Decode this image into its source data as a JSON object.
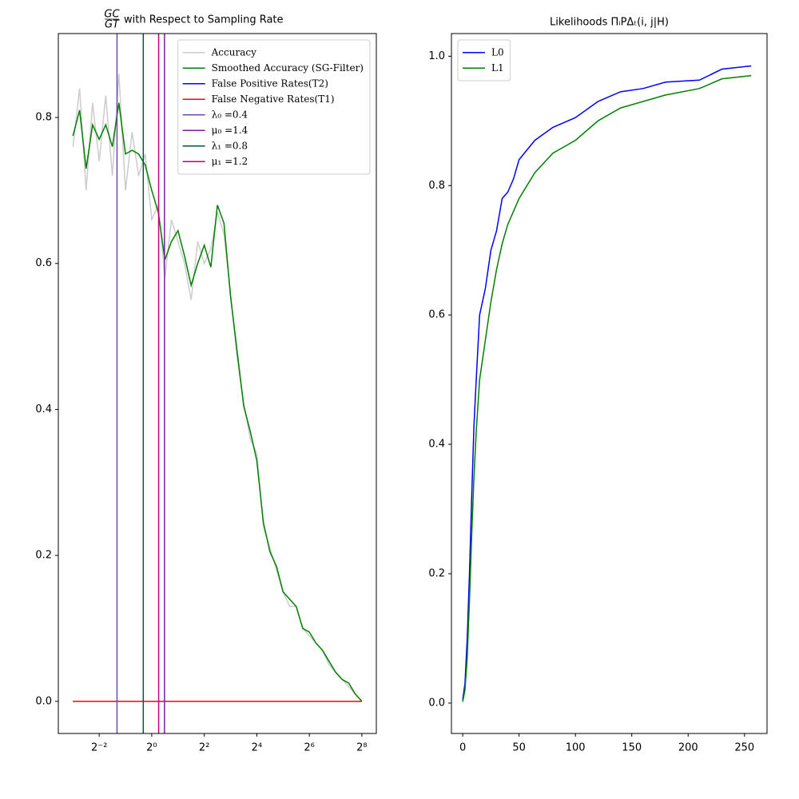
{
  "chart_data": [
    {
      "type": "line",
      "title": {
        "numerator": "GC",
        "denominator": "GT",
        "text": "with Respect to Sampling Rate"
      },
      "log_base": 2,
      "x": [
        0.125,
        0.149,
        0.177,
        0.21,
        0.25,
        0.297,
        0.354,
        0.42,
        0.5,
        0.595,
        0.707,
        0.841,
        1,
        1.189,
        1.414,
        1.682,
        2,
        2.378,
        2.828,
        3.364,
        4,
        4.757,
        5.657,
        6.727,
        8,
        9.514,
        11.314,
        13.454,
        16,
        19.027,
        22.627,
        26.909,
        32,
        38.055,
        45.255,
        53.817,
        64,
        76.109,
        90.51,
        107.635,
        128,
        152.219,
        181.019,
        215.269,
        256
      ],
      "series": [
        {
          "name": "Accuracy",
          "color": "#cccccc",
          "values": [
            0.76,
            0.84,
            0.7,
            0.82,
            0.74,
            0.83,
            0.72,
            0.86,
            0.7,
            0.78,
            0.72,
            0.75,
            0.66,
            0.68,
            0.58,
            0.66,
            0.63,
            0.6,
            0.55,
            0.63,
            0.6,
            0.62,
            0.67,
            0.64,
            0.56,
            0.47,
            0.41,
            0.36,
            0.34,
            0.24,
            0.21,
            0.18,
            0.15,
            0.13,
            0.13,
            0.1,
            0.09,
            0.08,
            0.07,
            0.05,
            0.04,
            0.03,
            0.02,
            0.01,
            0.0
          ]
        },
        {
          "name": "Smoothed Accuracy (SG-Filter)",
          "color": "#008000",
          "values": [
            0.775,
            0.81,
            0.73,
            0.79,
            0.77,
            0.79,
            0.76,
            0.82,
            0.75,
            0.755,
            0.75,
            0.735,
            0.7,
            0.67,
            0.605,
            0.63,
            0.645,
            0.61,
            0.57,
            0.6,
            0.625,
            0.595,
            0.68,
            0.655,
            0.555,
            0.48,
            0.405,
            0.37,
            0.33,
            0.245,
            0.205,
            0.185,
            0.15,
            0.14,
            0.13,
            0.1,
            0.095,
            0.08,
            0.07,
            0.055,
            0.04,
            0.03,
            0.025,
            0.01,
            0.0
          ]
        },
        {
          "name": "False Positive Rates(T2)",
          "color": "#0000ff",
          "x": [
            0.125,
            256
          ],
          "values": [
            0,
            0
          ]
        },
        {
          "name": "False Negative Rates(T1)",
          "color": "#ff0000",
          "x": [
            0.125,
            256
          ],
          "values": [
            0,
            0
          ]
        }
      ],
      "vlines": [
        {
          "name": "λ₀ =0.4",
          "x": 0.4,
          "color": "#6a4cb0"
        },
        {
          "name": "μ₀ =1.4",
          "x": 1.4,
          "color": "#7e1e9c"
        },
        {
          "name": "λ₁ =0.8",
          "x": 0.8,
          "color": "#05533a"
        },
        {
          "name": "μ₁ =1.2",
          "x": 1.2,
          "color": "#c20078"
        }
      ],
      "xlim": [
        0.085,
        375
      ],
      "xticks": [
        {
          "value": 0.25,
          "label": "2⁻²"
        },
        {
          "value": 1,
          "label": "2⁰"
        },
        {
          "value": 4,
          "label": "2²"
        },
        {
          "value": 16,
          "label": "2⁴"
        },
        {
          "value": 64,
          "label": "2⁶"
        },
        {
          "value": 256,
          "label": "2⁸"
        }
      ],
      "ylim": [
        -0.044,
        0.915
      ],
      "yticks": [
        {
          "value": 0,
          "label": "0.0"
        },
        {
          "value": 0.2,
          "label": "0.2"
        },
        {
          "value": 0.4,
          "label": "0.4"
        },
        {
          "value": 0.6,
          "label": "0.6"
        },
        {
          "value": 0.8,
          "label": "0.8"
        }
      ],
      "legend": "upper right"
    },
    {
      "type": "line",
      "title": {
        "text": "Likelihoods ΠᵢPΔₜ(i, j|H)"
      },
      "x": [
        0,
        2,
        4,
        6,
        8,
        10,
        12,
        15,
        20,
        25,
        30,
        35,
        40,
        45,
        50,
        64,
        80,
        100,
        120,
        140,
        160,
        180,
        210,
        230,
        256
      ],
      "series": [
        {
          "name": "L0",
          "color": "#0000ff",
          "values": [
            0.005,
            0.03,
            0.1,
            0.2,
            0.32,
            0.43,
            0.5,
            0.6,
            0.64,
            0.7,
            0.73,
            0.78,
            0.79,
            0.81,
            0.84,
            0.87,
            0.89,
            0.905,
            0.93,
            0.945,
            0.95,
            0.96,
            0.963,
            0.98,
            0.985
          ]
        },
        {
          "name": "L1",
          "color": "#008000",
          "values": [
            0.002,
            0.02,
            0.07,
            0.16,
            0.26,
            0.35,
            0.42,
            0.5,
            0.56,
            0.62,
            0.67,
            0.71,
            0.74,
            0.76,
            0.78,
            0.82,
            0.85,
            0.87,
            0.9,
            0.92,
            0.93,
            0.94,
            0.95,
            0.965,
            0.97
          ]
        }
      ],
      "xlim": [
        -10,
        270
      ],
      "xticks": [
        0,
        50,
        100,
        150,
        200,
        250
      ],
      "ylim": [
        -0.047,
        1.035
      ],
      "yticks": [
        {
          "value": 0,
          "label": "0.0"
        },
        {
          "value": 0.2,
          "label": "0.2"
        },
        {
          "value": 0.4,
          "label": "0.4"
        },
        {
          "value": 0.6,
          "label": "0.6"
        },
        {
          "value": 0.8,
          "label": "0.8"
        },
        {
          "value": 1,
          "label": "1.0"
        }
      ],
      "legend": "upper left"
    }
  ]
}
